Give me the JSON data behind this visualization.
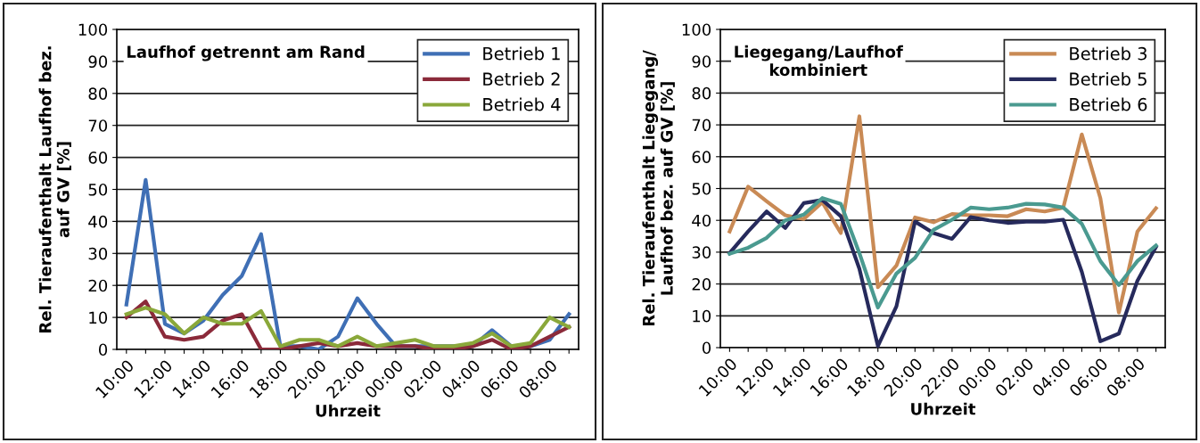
{
  "chart_data": [
    {
      "type": "line",
      "title": "Laufhof getrennt am Rand",
      "xlabel": "Uhrzeit",
      "ylabel": "Rel. Tieraufenthalt Laufhof bez.\nauf GV [%]",
      "categories": [
        "10:00",
        null,
        "12:00",
        null,
        "14:00",
        null,
        "16:00",
        null,
        "18:00",
        null,
        "20:00",
        null,
        "22:00",
        null,
        "00:00",
        null,
        "02:00",
        null,
        "04:00",
        null,
        "06:00",
        null,
        "08:00",
        null
      ],
      "series": [
        {
          "name": "Betrieb 1",
          "color": "#3f6fb5",
          "values": [
            14,
            53,
            8,
            5,
            9,
            17,
            23,
            36,
            1,
            1,
            0,
            4,
            16,
            8,
            1,
            1,
            1,
            1,
            1,
            6,
            1,
            1,
            3,
            11
          ]
        },
        {
          "name": "Betrieb 2",
          "color": "#8b2a3a",
          "values": [
            10,
            15,
            4,
            3,
            4,
            9,
            11,
            0,
            0,
            1,
            2,
            1,
            2,
            1,
            1,
            1,
            0,
            0,
            1,
            3,
            0,
            1,
            4,
            7
          ]
        },
        {
          "name": "Betrieb 4",
          "color": "#8aa83a",
          "values": [
            11,
            13,
            11,
            5,
            10,
            8,
            8,
            12,
            1,
            3,
            3,
            1,
            4,
            1,
            2,
            3,
            1,
            1,
            2,
            5,
            1,
            2,
            10,
            7
          ]
        }
      ],
      "ylim": [
        0,
        100
      ],
      "yticks": [
        0,
        10,
        20,
        30,
        40,
        50,
        60,
        70,
        80,
        90,
        100
      ],
      "grid": "y",
      "legend": "top right",
      "marker": "none",
      "line_style": "solid"
    },
    {
      "type": "line",
      "title": "Liegegang/Laufhof\nkombiniert",
      "xlabel": "Uhrzeit",
      "ylabel": "Rel. Tieraufenthalt Liegegang/\nLaufhof bez. auf GV [%]",
      "categories": [
        "10:00",
        null,
        "12:00",
        null,
        "14:00",
        null,
        "16:00",
        null,
        "18:00",
        null,
        "20:00",
        null,
        "22:00",
        null,
        "00:00",
        null,
        "02:00",
        null,
        "04:00",
        null,
        "06:00",
        null,
        "08:00",
        null
      ],
      "series": [
        {
          "name": "Betrieb 3",
          "color": "#c98a55",
          "values": [
            36.5,
            50.6,
            46,
            41.6,
            40.4,
            45.7,
            36,
            72.7,
            19,
            25.8,
            40.9,
            39.4,
            42,
            41.6,
            41.6,
            41.3,
            43.5,
            42.8,
            44,
            67,
            47,
            11,
            36.5,
            43.8
          ]
        },
        {
          "name": "Betrieb 5",
          "color": "#262a5c",
          "values": [
            29.7,
            36.5,
            42.8,
            37.6,
            45.4,
            46.4,
            41.3,
            24.8,
            0.5,
            13,
            39.6,
            36,
            34.2,
            41,
            40,
            39.2,
            39.6,
            39.6,
            40.2,
            23.8,
            2,
            4.4,
            21,
            31.6
          ]
        },
        {
          "name": "Betrieb 6",
          "color": "#4a9a90",
          "values": [
            29.5,
            31.4,
            34.5,
            40,
            41.8,
            47,
            45.2,
            29.7,
            12.6,
            23.3,
            28.2,
            37,
            40.2,
            44,
            43.5,
            44,
            45.2,
            45,
            44,
            38.9,
            27.2,
            19.7,
            27.2,
            32.1
          ]
        }
      ],
      "ylim": [
        0,
        100
      ],
      "yticks": [
        0,
        10,
        20,
        30,
        40,
        50,
        60,
        70,
        80,
        90,
        100
      ],
      "grid": "y",
      "legend": "top right",
      "marker": "none",
      "line_style": "solid"
    }
  ]
}
